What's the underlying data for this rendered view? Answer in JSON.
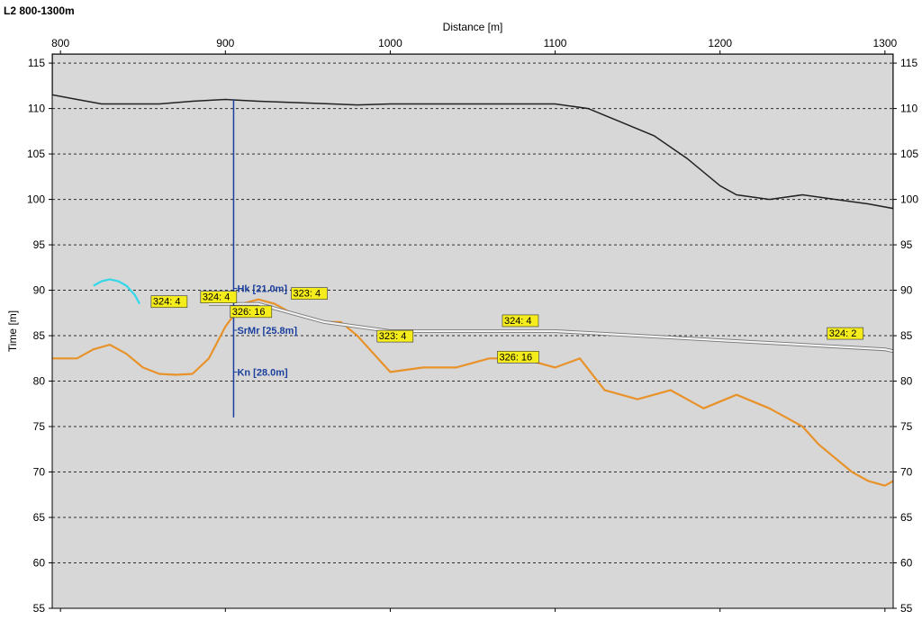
{
  "window": {
    "title": "L2 800-1300m"
  },
  "chart_data": {
    "type": "line",
    "title": "L2 800-1300m",
    "xlabel": "Distance [m]",
    "ylabel": "Time [m]",
    "xlim": [
      795,
      1305
    ],
    "ylim": [
      55,
      116
    ],
    "x_ticks": [
      800,
      900,
      1000,
      1100,
      1200,
      1300
    ],
    "x_tick_labels": [
      "800",
      "900",
      "1000",
      "1100",
      "1200",
      "1300"
    ],
    "y_ticks": [
      55,
      60,
      65,
      70,
      75,
      80,
      85,
      90,
      95,
      100,
      105,
      110,
      115
    ],
    "y_tick_labels": [
      "55",
      "60",
      "65",
      "70",
      "75",
      "80",
      "85",
      "90",
      "95",
      "100",
      "105",
      "110",
      "115"
    ],
    "grid": "horizontal-dashed",
    "colors": {
      "surface_fill": "#d8d8d8",
      "surface_line": "#222222",
      "orange_horizon": "#e8922a",
      "white_horizon": "#f2f2f2",
      "cyan_horizon": "#34d8e8",
      "label_fill": "#f5ec1c",
      "borehole": "#1a3f9c",
      "radar_background": "#8a8a8a"
    },
    "surface": {
      "x": [
        795,
        810,
        825,
        840,
        860,
        880,
        900,
        920,
        950,
        980,
        1000,
        1050,
        1100,
        1120,
        1140,
        1160,
        1180,
        1200,
        1210,
        1230,
        1250,
        1270,
        1290,
        1305
      ],
      "y": [
        111.5,
        111,
        110.5,
        110.5,
        110.5,
        110.8,
        111,
        110.8,
        110.6,
        110.4,
        110.5,
        110.5,
        110.5,
        110,
        108.5,
        107,
        104.5,
        101.5,
        100.5,
        100,
        100.5,
        100,
        99.5,
        99
      ]
    },
    "series": [
      {
        "color": "#e8922a",
        "x": [
          795,
          810,
          820,
          830,
          840,
          850,
          860,
          870,
          880,
          890,
          900,
          910,
          920,
          930,
          940,
          950,
          960,
          970,
          980,
          990,
          1000,
          1020,
          1040,
          1060,
          1080,
          1100,
          1115,
          1130,
          1150,
          1170,
          1190,
          1210,
          1230,
          1250,
          1260,
          1280,
          1290,
          1300,
          1305
        ],
        "y": [
          82.5,
          82.5,
          83.5,
          84,
          83,
          81.5,
          80.8,
          80.7,
          80.8,
          82.5,
          86,
          88.5,
          89,
          88.5,
          87.5,
          87,
          86.5,
          86.5,
          85,
          83,
          81,
          81.5,
          81.5,
          82.5,
          82.5,
          81.5,
          82.5,
          79,
          78,
          79,
          77,
          78.5,
          77,
          75,
          73,
          70,
          69,
          68.5,
          69
        ]
      },
      {
        "color": "#f2f2f2",
        "x": [
          890,
          920,
          960,
          1000,
          1050,
          1100,
          1150,
          1200,
          1250,
          1300,
          1305
        ],
        "y": [
          88.5,
          88.5,
          86.5,
          85.5,
          85.5,
          85.5,
          85,
          84.5,
          84,
          83.5,
          83.3
        ]
      },
      {
        "color": "#34d8e8",
        "x": [
          820,
          825,
          830,
          835,
          840,
          845,
          848
        ],
        "y": [
          90.5,
          91,
          91.2,
          91,
          90.5,
          89.5,
          88.5
        ]
      }
    ],
    "annotations": [
      {
        "text": "324: 4",
        "x": 855,
        "y": 88.3
      },
      {
        "text": "324: 4",
        "x": 885,
        "y": 88.8
      },
      {
        "text": "326: 16",
        "x": 903,
        "y": 87.2
      },
      {
        "text": "323: 4",
        "x": 940,
        "y": 89.2
      },
      {
        "text": "323: 4",
        "x": 992,
        "y": 84.5
      },
      {
        "text": "324: 4",
        "x": 1068,
        "y": 86.2
      },
      {
        "text": "326: 16",
        "x": 1065,
        "y": 82.2
      },
      {
        "text": "324: 2",
        "x": 1265,
        "y": 84.8
      }
    ],
    "borehole": {
      "x": 905,
      "top": 111,
      "bottom": 76,
      "labels": [
        {
          "text": "Hk [21.0m]",
          "y": 89.8
        },
        {
          "text": "SrMr [25.8m]",
          "y": 85.2
        },
        {
          "text": "Kn [28.0m]",
          "y": 80.6
        }
      ]
    }
  }
}
